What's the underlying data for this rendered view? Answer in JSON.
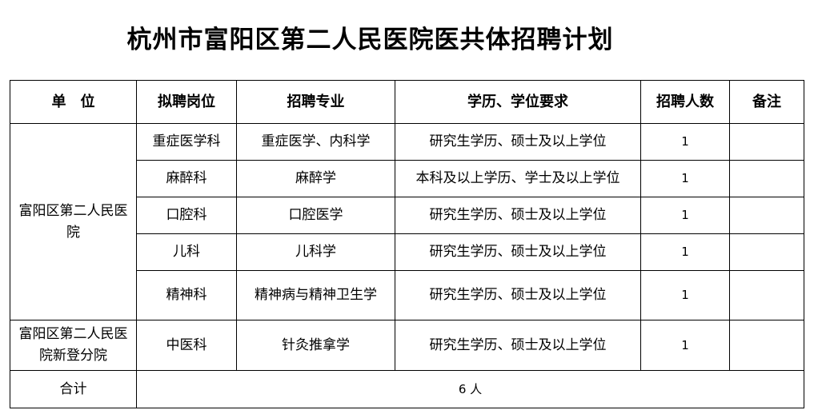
{
  "title": "杭州市富阳区第二人民医院医共体招聘计划",
  "headers": [
    "单　位",
    "拟聘岗位",
    "招聘专业",
    "学历、学位要求",
    "招聘人数",
    "备注"
  ],
  "groups": [
    {
      "unit": "富阳区第二人民医院",
      "rows": [
        {
          "post": "重症医学科",
          "major": "重症医学、内科学",
          "edu": "研究生学历、硕士及以上学位",
          "count": "1",
          "note": ""
        },
        {
          "post": "麻醉科",
          "major": "麻醉学",
          "edu": "本科及以上学历、学士及以上学位",
          "count": "1",
          "note": ""
        },
        {
          "post": "口腔科",
          "major": "口腔医学",
          "edu": "研究生学历、硕士及以上学位",
          "count": "1",
          "note": ""
        },
        {
          "post": "儿科",
          "major": "儿科学",
          "edu": "研究生学历、硕士及以上学位",
          "count": "1",
          "note": ""
        },
        {
          "post": "精神科",
          "major": "精神病与精神卫生学",
          "edu": "研究生学历、硕士及以上学位",
          "count": "1",
          "note": ""
        }
      ]
    },
    {
      "unit": "富阳区第二人民医院新登分院",
      "rows": [
        {
          "post": "中医科",
          "major": "针灸推拿学",
          "edu": "研究生学历、硕士及以上学位",
          "count": "1",
          "note": ""
        }
      ]
    }
  ],
  "total": {
    "label": "合计",
    "value": "6 人"
  }
}
